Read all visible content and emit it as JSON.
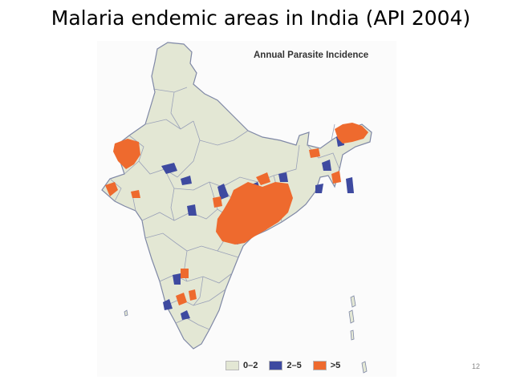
{
  "slide": {
    "title": "Malaria endemic areas in India (API 2004)",
    "page_number": "12"
  },
  "map": {
    "heading": "Annual Parasite Incidence",
    "legend": [
      {
        "label": "0–2",
        "color": "#e3e7d4"
      },
      {
        "label": "2–5",
        "color": "#3e4aa0"
      },
      {
        "label": ">5",
        "color": "#ee6a2e"
      }
    ],
    "colors": {
      "background": "#fbfbfb",
      "land": "#e3e7d4",
      "borders": "#8b93ad",
      "low": "#e3e7d4",
      "medium": "#3e4aa0",
      "high": "#ee6a2e"
    }
  }
}
